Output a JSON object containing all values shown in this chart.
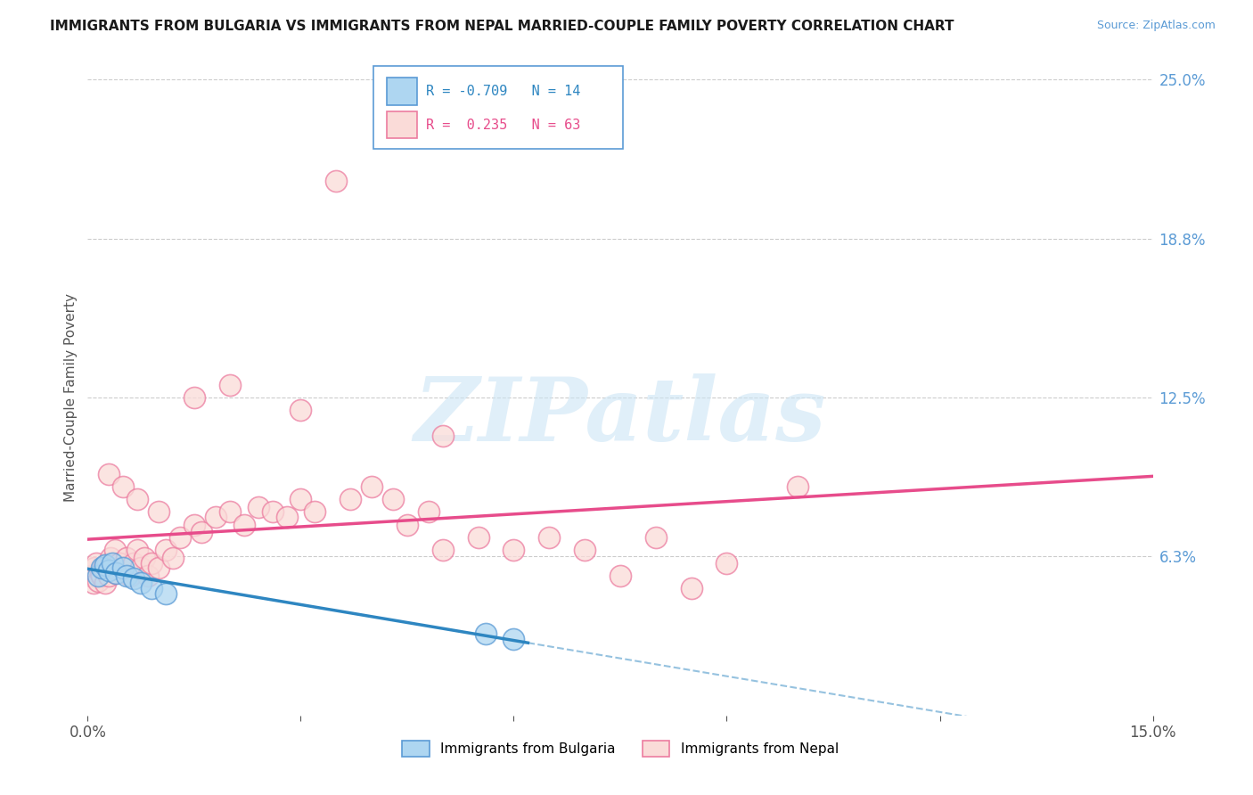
{
  "title": "IMMIGRANTS FROM BULGARIA VS IMMIGRANTS FROM NEPAL MARRIED-COUPLE FAMILY POVERTY CORRELATION CHART",
  "source": "Source: ZipAtlas.com",
  "ylabel": "Married-Couple Family Poverty",
  "legend_label_1": "Immigrants from Bulgaria",
  "legend_label_2": "Immigrants from Nepal",
  "R_bulgaria": -0.709,
  "N_bulgaria": 14,
  "R_nepal": 0.235,
  "N_nepal": 63,
  "xlim": [
    0.0,
    15.0
  ],
  "ylim": [
    0.0,
    25.0
  ],
  "ytick_positions": [
    6.25,
    12.5,
    18.75,
    25.0
  ],
  "ytick_labels": [
    "6.3%",
    "12.5%",
    "18.8%",
    "25.0%"
  ],
  "watermark_text": "ZIPatlas",
  "color_bulgaria_face": "#AED6F1",
  "color_bulgaria_edge": "#5B9BD5",
  "color_nepal_face": "#FADBD8",
  "color_nepal_edge": "#EC7DA0",
  "color_trendline_bulgaria": "#2E86C1",
  "color_trendline_nepal": "#E74C8B",
  "bg_color": "#FFFFFF",
  "grid_color": "#CCCCCC",
  "title_color": "#1A1A1A",
  "source_color": "#5B9BD5",
  "ylabel_color": "#555555",
  "ytick_color": "#5B9BD5",
  "xtick_color": "#555555",
  "legend_box_color": "#5B9BD5",
  "x_bul": [
    0.15,
    0.2,
    0.25,
    0.3,
    0.35,
    0.4,
    0.5,
    0.55,
    0.65,
    0.75,
    0.9,
    1.1,
    5.6,
    6.0
  ],
  "y_bul": [
    5.5,
    5.8,
    5.9,
    5.7,
    6.0,
    5.6,
    5.8,
    5.5,
    5.4,
    5.2,
    5.0,
    4.8,
    3.2,
    3.0
  ],
  "x_nep": [
    0.05,
    0.08,
    0.1,
    0.12,
    0.15,
    0.18,
    0.2,
    0.22,
    0.25,
    0.28,
    0.3,
    0.32,
    0.35,
    0.38,
    0.4,
    0.45,
    0.5,
    0.55,
    0.6,
    0.65,
    0.7,
    0.75,
    0.8,
    0.85,
    0.9,
    1.0,
    1.1,
    1.2,
    1.3,
    1.5,
    1.6,
    1.8,
    2.0,
    2.2,
    2.4,
    2.6,
    2.8,
    3.0,
    3.2,
    3.5,
    3.7,
    4.0,
    4.3,
    4.5,
    4.8,
    5.0,
    5.5,
    6.0,
    6.5,
    7.0,
    7.5,
    8.0,
    8.5,
    9.0,
    10.0,
    0.3,
    0.5,
    0.7,
    1.0,
    1.5,
    2.0,
    3.0,
    5.0
  ],
  "y_nep": [
    5.5,
    5.2,
    5.8,
    6.0,
    5.3,
    5.6,
    5.5,
    5.8,
    5.2,
    6.0,
    5.5,
    6.2,
    5.8,
    6.5,
    5.6,
    6.0,
    5.8,
    6.2,
    5.5,
    6.0,
    6.5,
    5.8,
    6.2,
    5.5,
    6.0,
    5.8,
    6.5,
    6.2,
    7.0,
    7.5,
    7.2,
    7.8,
    8.0,
    7.5,
    8.2,
    8.0,
    7.8,
    8.5,
    8.0,
    21.0,
    8.5,
    9.0,
    8.5,
    7.5,
    8.0,
    6.5,
    7.0,
    6.5,
    7.0,
    6.5,
    5.5,
    7.0,
    5.0,
    6.0,
    9.0,
    9.5,
    9.0,
    8.5,
    8.0,
    12.5,
    13.0,
    12.0,
    11.0
  ]
}
